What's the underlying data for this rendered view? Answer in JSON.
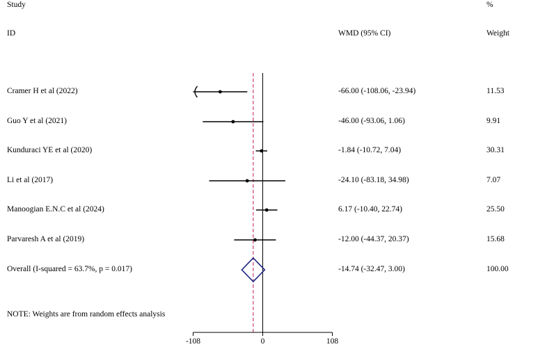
{
  "chart_data": {
    "type": "forest",
    "header": {
      "study_line1": "Study",
      "study_line2": "ID",
      "effect_label": "WMD (95% CI)",
      "weight_line1": "%",
      "weight_line2": "Weight"
    },
    "studies": [
      {
        "label": "Cramer H et al (2022)",
        "est": -66.0,
        "lo": -108.06,
        "hi": -23.94,
        "ci_text": "-66.00 (-108.06, -23.94)",
        "weight": "11.53",
        "arrow_left": true
      },
      {
        "label": "Guo Y et al (2021)",
        "est": -46.0,
        "lo": -93.06,
        "hi": 1.06,
        "ci_text": "-46.00 (-93.06, 1.06)",
        "weight": "9.91",
        "arrow_left": false
      },
      {
        "label": "Kunduraci YE et al (2020)",
        "est": -1.84,
        "lo": -10.72,
        "hi": 7.04,
        "ci_text": "-1.84 (-10.72, 7.04)",
        "weight": "30.31",
        "arrow_left": false
      },
      {
        "label": "Li  et al (2017)",
        "est": -24.1,
        "lo": -83.18,
        "hi": 34.98,
        "ci_text": "-24.10 (-83.18, 34.98)",
        "weight": "7.07",
        "arrow_left": false
      },
      {
        "label": "Manoogian E.N.C et al (2024)",
        "est": 6.17,
        "lo": -10.4,
        "hi": 22.74,
        "ci_text": "6.17 (-10.40, 22.74)",
        "weight": "25.50",
        "arrow_left": false
      },
      {
        "label": "Parvaresh A et al (2019)",
        "est": -12.0,
        "lo": -44.37,
        "hi": 20.37,
        "ci_text": "-12.00 (-44.37, 20.37)",
        "weight": "15.68",
        "arrow_left": false
      }
    ],
    "overall": {
      "label": "Overall  (I-squared = 63.7%, p = 0.017)",
      "est": -14.74,
      "lo": -32.47,
      "hi": 3.0,
      "ci_text": "-14.74 (-32.47, 3.00)",
      "weight": "100.00"
    },
    "note": "NOTE: Weights are from random effects analysis",
    "x_ticks": [
      {
        "value": -108,
        "label": "-108"
      },
      {
        "value": 0,
        "label": "0"
      },
      {
        "value": 108,
        "label": "108"
      }
    ],
    "xlim": [
      -108,
      108
    ],
    "colors": {
      "marker": "#000000",
      "line": "#000000",
      "diamond": "#1a237e",
      "pooled_line": "#c2185b"
    }
  }
}
